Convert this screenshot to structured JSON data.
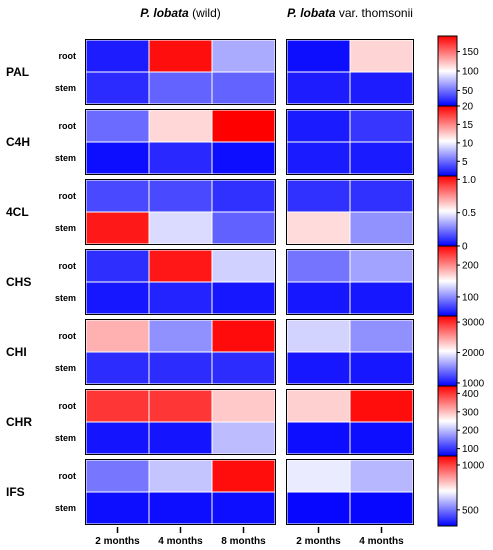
{
  "chart_data": {
    "type": "heatmap",
    "colormap": {
      "low": "#0000ff",
      "mid": "#ffffff",
      "high": "#ff0000"
    },
    "panels": [
      {
        "title_italic": "P. lobata",
        "title_rest": " (wild)",
        "columns": [
          "2 months",
          "4 months",
          "8 months"
        ]
      },
      {
        "title_italic": "P. lobata",
        "title_rest": " var. thomsonii",
        "columns": [
          "2 months",
          "4 months"
        ]
      }
    ],
    "row_labels": [
      "root",
      "stem"
    ],
    "genes": [
      {
        "name": "PAL",
        "scale": {
          "min": 10,
          "max": 190,
          "ticks": [
            "150",
            "100",
            "50"
          ]
        },
        "wild": {
          "root": [
            20,
            185,
            70
          ],
          "stem": [
            25,
            45,
            45
          ]
        },
        "thomsonii": {
          "root": [
            15,
            115
          ],
          "stem": [
            20,
            20
          ]
        }
      },
      {
        "name": "C4H",
        "scale": {
          "min": 1,
          "max": 20,
          "ticks": [
            "20",
            "15",
            "10",
            "5"
          ]
        },
        "wild": {
          "root": [
            5,
            12,
            20
          ],
          "stem": [
            1.5,
            2.5,
            1.5
          ]
        },
        "thomsonii": {
          "root": [
            2,
            3
          ],
          "stem": [
            2,
            2
          ]
        }
      },
      {
        "name": "4CL",
        "scale": {
          "min": 0,
          "max": 1.05,
          "ticks": [
            "1.0",
            "0.5",
            "0"
          ]
        },
        "wild": {
          "root": [
            0.15,
            0.15,
            0.1
          ],
          "stem": [
            1.0,
            0.45,
            0.2
          ]
        },
        "thomsonii": {
          "root": [
            0.1,
            0.1
          ],
          "stem": [
            0.6,
            0.3
          ]
        }
      },
      {
        "name": "CHS",
        "scale": {
          "min": 40,
          "max": 260,
          "ticks": [
            "200",
            "100"
          ]
        },
        "wild": {
          "root": [
            60,
            250,
            130
          ],
          "stem": [
            50,
            55,
            50
          ]
        },
        "thomsonii": {
          "root": [
            90,
            110
          ],
          "stem": [
            50,
            50
          ]
        }
      },
      {
        "name": "CHI",
        "scale": {
          "min": 900,
          "max": 3200,
          "ticks": [
            "3000",
            "2000",
            "1000"
          ]
        },
        "wild": {
          "root": [
            2400,
            1550,
            3150
          ],
          "stem": [
            1100,
            1100,
            1100
          ]
        },
        "thomsonii": {
          "root": [
            1850,
            1550
          ],
          "stem": [
            1000,
            1000
          ]
        }
      },
      {
        "name": "CHR",
        "scale": {
          "min": 60,
          "max": 440,
          "ticks": [
            "400",
            "300",
            "200",
            "100"
          ]
        },
        "wild": {
          "root": [
            400,
            400,
            290
          ],
          "stem": [
            75,
            75,
            200
          ]
        },
        "thomsonii": {
          "root": [
            285,
            430
          ],
          "stem": [
            70,
            70
          ]
        }
      },
      {
        "name": "IFS",
        "scale": {
          "min": 320,
          "max": 1100,
          "ticks": [
            "1000",
            "500"
          ]
        },
        "wild": {
          "root": [
            500,
            620,
            1080
          ],
          "stem": [
            340,
            340,
            340
          ]
        },
        "thomsonii": {
          "root": [
            680,
            600
          ],
          "stem": [
            330,
            330
          ]
        }
      }
    ]
  }
}
